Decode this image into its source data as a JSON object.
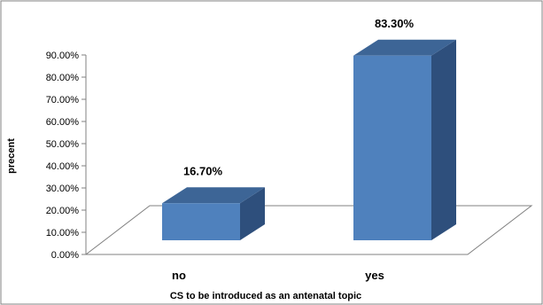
{
  "chart_data": {
    "type": "bar",
    "categories": [
      "no",
      "yes"
    ],
    "values": [
      16.7,
      83.3
    ],
    "data_labels": [
      "16.70%",
      "83.30%"
    ],
    "xlabel": "CS to be introduced as an antenatal topic",
    "ylabel": "precent",
    "ylim": [
      0,
      90
    ],
    "y_ticks": [
      "0.00%",
      "10.00%",
      "20.00%",
      "30.00%",
      "40.00%",
      "50.00%",
      "60.00%",
      "70.00%",
      "80.00%",
      "90.00%"
    ],
    "grid": false,
    "legend": "none",
    "style": "3d-column",
    "colors": {
      "front": "#4f81bd",
      "top": "#3d6596",
      "side": "#2e4f7c",
      "frame": "#808080"
    }
  }
}
